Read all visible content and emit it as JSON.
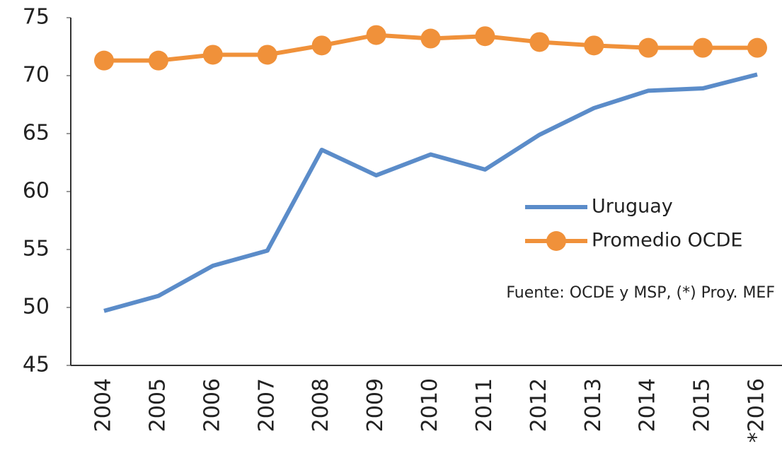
{
  "chart_data": {
    "type": "line",
    "categories": [
      "2004",
      "2005",
      "2006",
      "2007",
      "2008",
      "2009",
      "2010",
      "2011",
      "2012",
      "2013",
      "2014",
      "2015",
      "*2016"
    ],
    "series": [
      {
        "name": "Uruguay",
        "color": "#5b8cc9",
        "values": [
          49.7,
          51.0,
          53.6,
          54.9,
          63.6,
          61.4,
          63.2,
          61.9,
          64.9,
          67.2,
          68.7,
          68.9,
          70.1
        ]
      },
      {
        "name": "Promedio OCDE",
        "color": "#f0913a",
        "marker": true,
        "values": [
          71.3,
          71.3,
          71.8,
          71.8,
          72.6,
          73.5,
          73.2,
          73.4,
          72.9,
          72.6,
          72.4,
          72.4,
          72.4
        ]
      }
    ],
    "ylim": [
      45,
      75
    ],
    "yticks": [
      45,
      50,
      55,
      60,
      65,
      70,
      75
    ],
    "grid": false,
    "legend": "right",
    "annotation": "Fuente: OCDE y MSP, (*) Proy. MEF"
  }
}
